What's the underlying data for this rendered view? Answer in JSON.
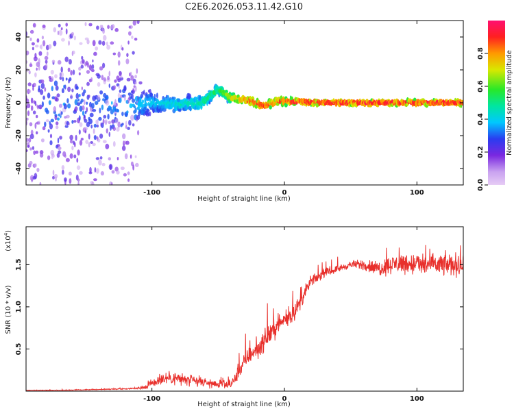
{
  "title": "C2E6.2026.053.11.42.G10",
  "chart_data": [
    {
      "type": "heatmap",
      "name": "spectrogram",
      "xlabel": "Height of straight line (km)",
      "ylabel": "Frequency (Hz)",
      "xlim": [
        -195,
        135
      ],
      "ylim": [
        -50,
        50
      ],
      "xticks": [
        -100,
        0,
        100
      ],
      "yticks": [
        -40,
        -20,
        0,
        20,
        40
      ],
      "colorbar": {
        "label": "Normalized spectral amplitude",
        "range": [
          0,
          1
        ],
        "ticks": [
          "0.0",
          "0.2",
          "0.4",
          "0.6",
          "0.8"
        ],
        "tick_values": [
          0.0,
          0.2,
          0.4,
          0.6,
          0.8
        ]
      },
      "center_track": [
        {
          "x": -195,
          "f": 0,
          "amp": 0.15,
          "spread": 48
        },
        {
          "x": -175,
          "f": -1,
          "amp": 0.35,
          "spread": 45
        },
        {
          "x": -150,
          "f": -3,
          "amp": 0.3,
          "spread": 40
        },
        {
          "x": -120,
          "f": -2,
          "amp": 0.35,
          "spread": 25
        },
        {
          "x": -100,
          "f": 0,
          "amp": 0.4,
          "spread": 8
        },
        {
          "x": -80,
          "f": -1,
          "amp": 0.45,
          "spread": 6
        },
        {
          "x": -62,
          "f": 0,
          "amp": 0.5,
          "spread": 6
        },
        {
          "x": -50,
          "f": 8,
          "amp": 0.55,
          "spread": 4
        },
        {
          "x": -40,
          "f": 3,
          "amp": 0.75,
          "spread": 4
        },
        {
          "x": -25,
          "f": 1,
          "amp": 0.9,
          "spread": 3
        },
        {
          "x": -15,
          "f": -2,
          "amp": 0.9,
          "spread": 3
        },
        {
          "x": -5,
          "f": 1,
          "amp": 0.9,
          "spread": 3
        },
        {
          "x": 30,
          "f": 0,
          "amp": 0.95,
          "spread": 2
        },
        {
          "x": 80,
          "f": 0,
          "amp": 0.95,
          "spread": 2
        },
        {
          "x": 135,
          "f": 0,
          "amp": 0.95,
          "spread": 2
        }
      ]
    },
    {
      "type": "line",
      "name": "snr",
      "xlabel": "Height of straight line (km)",
      "ylabel": "SNR (10 * v/v)",
      "y_multiplier": "(x10",
      "y_multiplier_exp": "4",
      "y_multiplier_close": ")",
      "xlim": [
        -195,
        135
      ],
      "ylim": [
        0,
        1.95
      ],
      "xticks": [
        -100,
        0,
        100
      ],
      "yticks": [
        0.5,
        1.0,
        1.5
      ],
      "ytick_labels": [
        "0.5",
        "1.0",
        "1.5"
      ],
      "color": "#e8302c",
      "series": [
        {
          "name": "SNR",
          "x": [
            -195,
            -170,
            -140,
            -115,
            -105,
            -100,
            -90,
            -80,
            -70,
            -60,
            -50,
            -42,
            -38,
            -34,
            -30,
            -25,
            -20,
            -15,
            -10,
            -5,
            0,
            5,
            10,
            15,
            20,
            25,
            30,
            40,
            50,
            60,
            70,
            80,
            90,
            100,
            110,
            120,
            130,
            135
          ],
          "y": [
            0.01,
            0.01,
            0.02,
            0.03,
            0.05,
            0.1,
            0.16,
            0.15,
            0.12,
            0.1,
            0.08,
            0.07,
            0.12,
            0.25,
            0.35,
            0.45,
            0.5,
            0.6,
            0.7,
            0.78,
            0.85,
            0.9,
            1.0,
            1.15,
            1.3,
            1.35,
            1.4,
            1.45,
            1.5,
            1.5,
            1.45,
            1.5,
            1.52,
            1.5,
            1.5,
            1.5,
            1.5,
            1.48
          ],
          "noise": [
            0.005,
            0.005,
            0.008,
            0.01,
            0.04,
            0.1,
            0.12,
            0.12,
            0.1,
            0.08,
            0.06,
            0.08,
            0.1,
            0.12,
            0.15,
            0.15,
            0.18,
            0.18,
            0.18,
            0.15,
            0.15,
            0.15,
            0.15,
            0.12,
            0.1,
            0.08,
            0.07,
            0.06,
            0.06,
            0.1,
            0.14,
            0.16,
            0.18,
            0.2,
            0.2,
            0.2,
            0.2,
            0.2
          ]
        }
      ]
    }
  ]
}
